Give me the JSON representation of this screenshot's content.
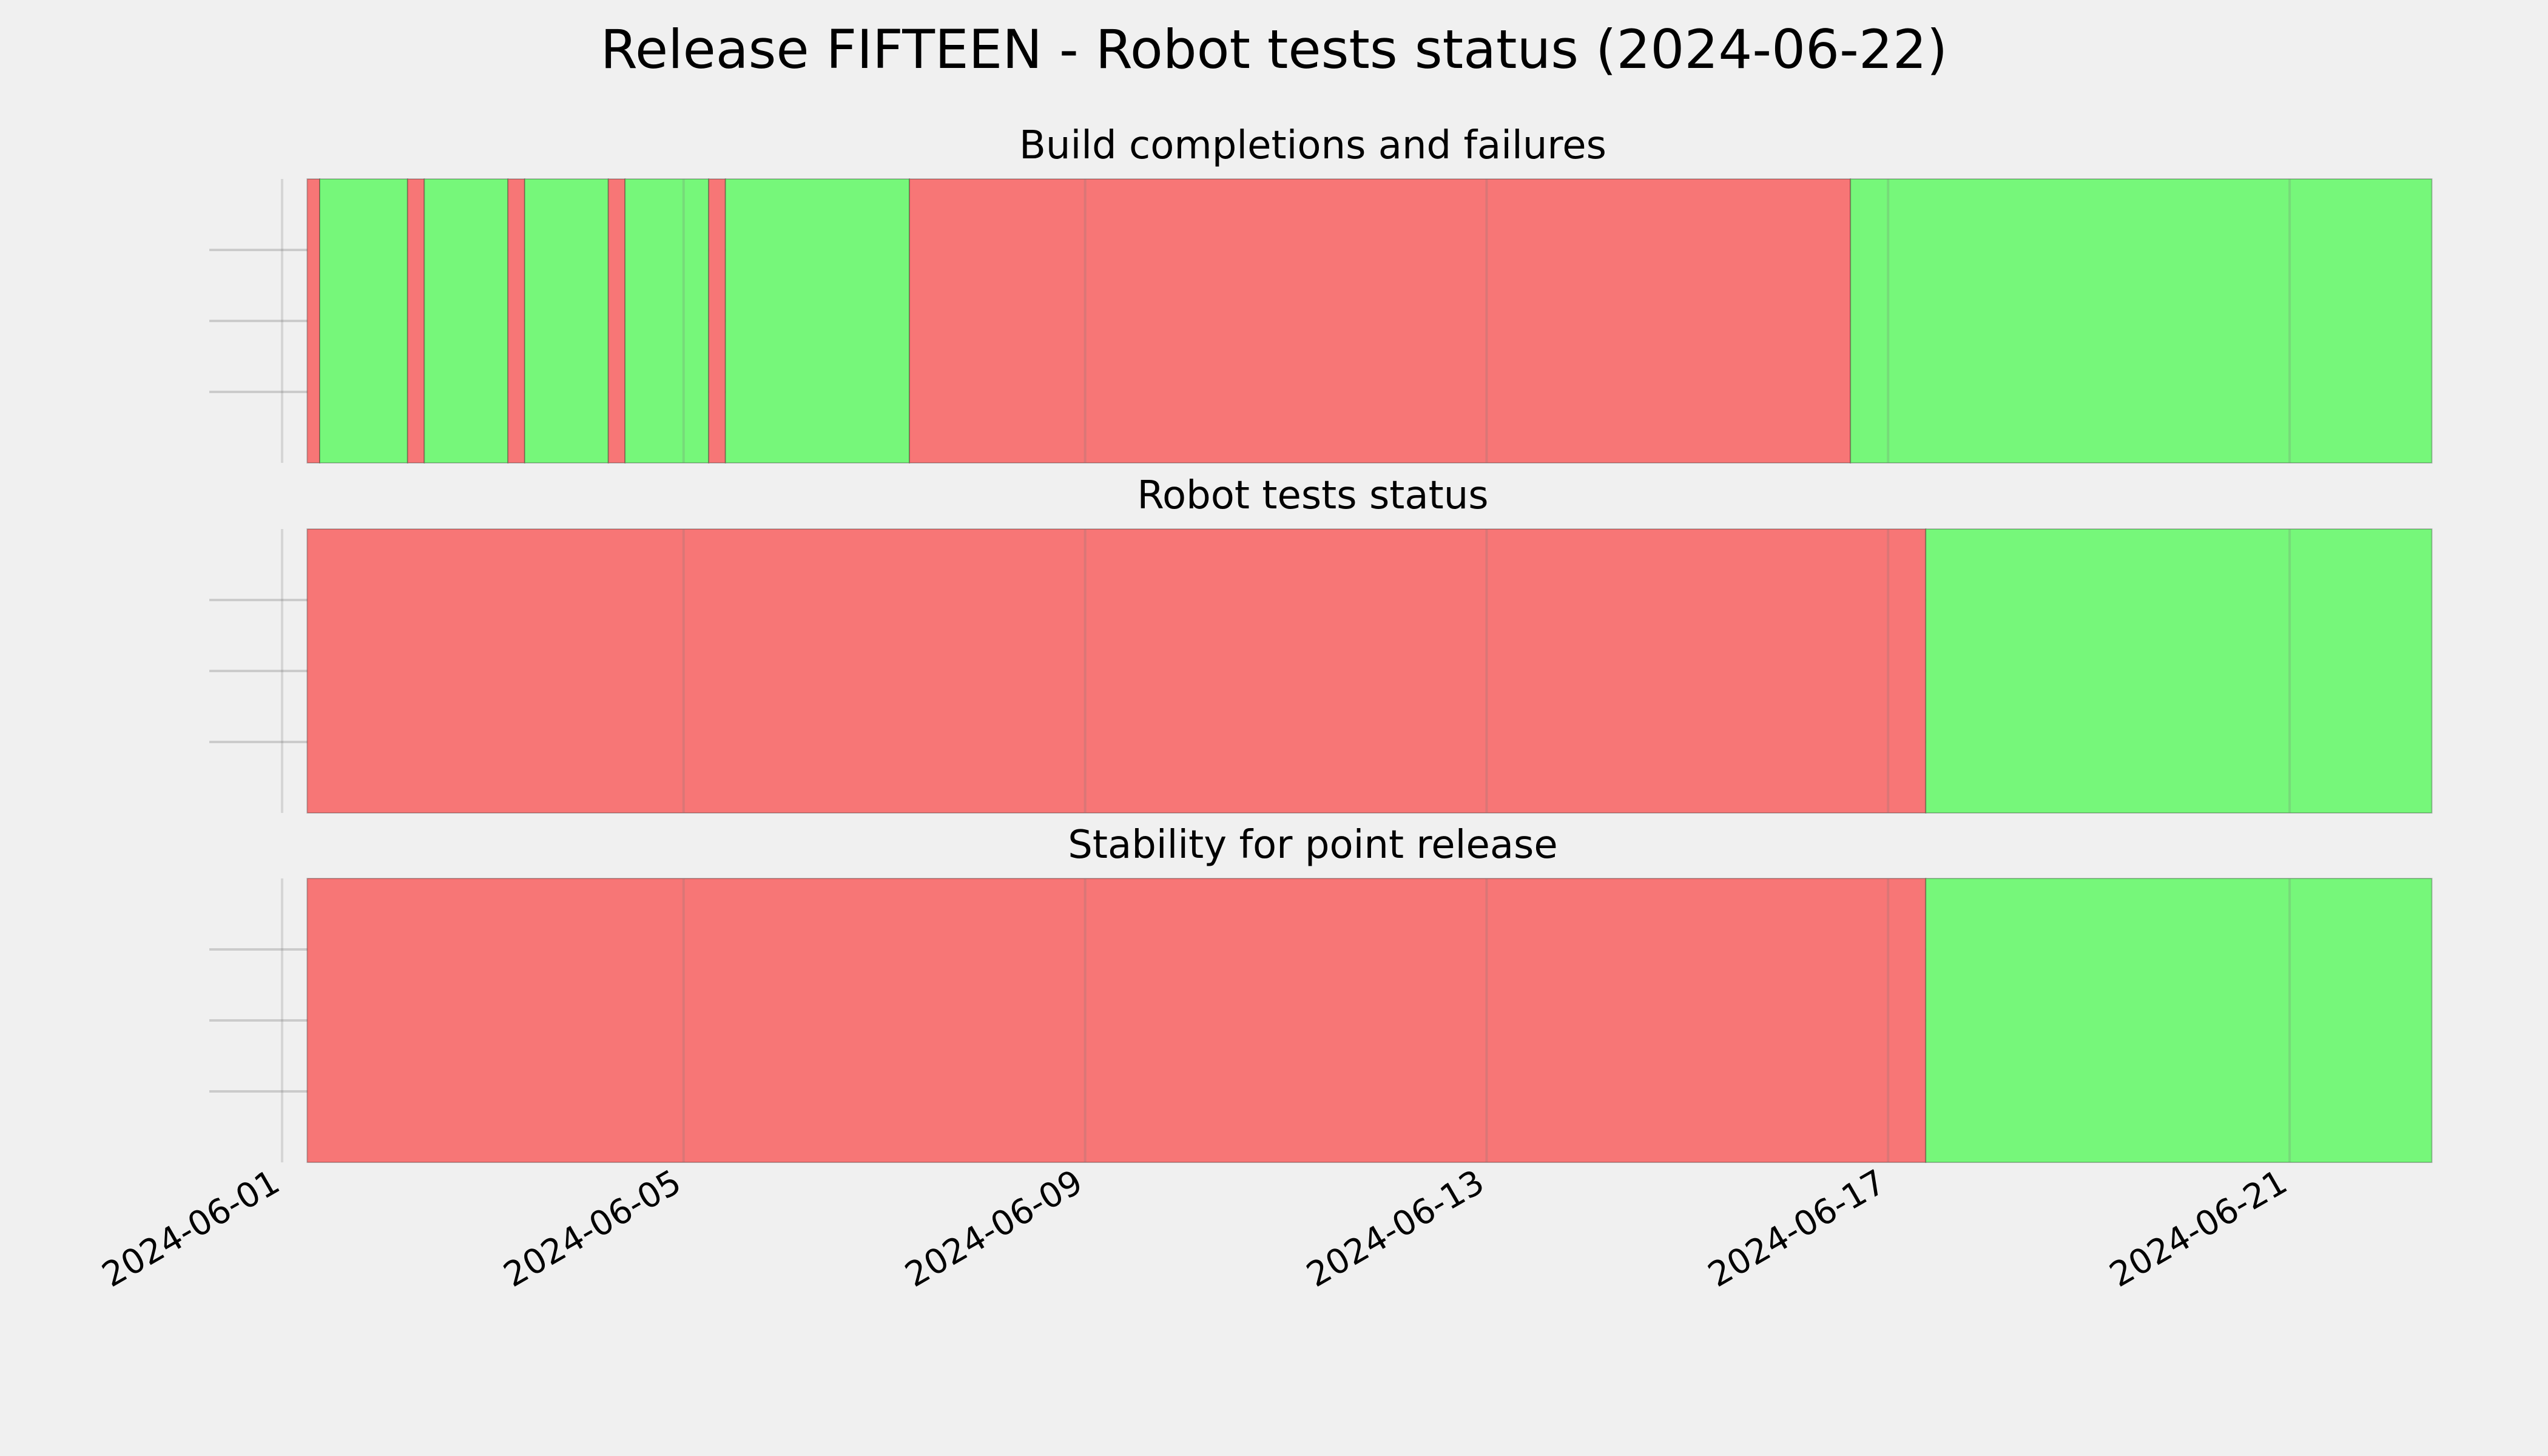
{
  "title": "Release FIFTEEN - Robot tests status (2024-06-22)",
  "colors": {
    "background": "#f0f0f0",
    "pass": "#76f77a",
    "fail": "#f77676",
    "grid": "#cbcbcb"
  },
  "chart_data": {
    "type": "timeline",
    "x_axis": {
      "type": "date",
      "range": [
        "2024-06-01",
        "2024-06-23"
      ],
      "ticks": [
        "2024-06-01",
        "2024-06-05",
        "2024-06-09",
        "2024-06-13",
        "2024-06-17",
        "2024-06-21"
      ],
      "grid": true
    },
    "y_axis": {
      "tick_labels": false,
      "grid": true
    },
    "panels": [
      {
        "title": "Build completions and failures",
        "segments": [
          {
            "start": "2024-06-01 06:00",
            "end": "2024-06-01 09:00",
            "status": "fail"
          },
          {
            "start": "2024-06-01 09:00",
            "end": "2024-06-02 06:00",
            "status": "pass"
          },
          {
            "start": "2024-06-02 06:00",
            "end": "2024-06-02 10:00",
            "status": "fail"
          },
          {
            "start": "2024-06-02 10:00",
            "end": "2024-06-03 06:00",
            "status": "pass"
          },
          {
            "start": "2024-06-03 06:00",
            "end": "2024-06-03 10:00",
            "status": "fail"
          },
          {
            "start": "2024-06-03 10:00",
            "end": "2024-06-04 06:00",
            "status": "pass"
          },
          {
            "start": "2024-06-04 06:00",
            "end": "2024-06-04 10:00",
            "status": "fail"
          },
          {
            "start": "2024-06-04 10:00",
            "end": "2024-06-05 06:00",
            "status": "pass"
          },
          {
            "start": "2024-06-05 06:00",
            "end": "2024-06-05 10:00",
            "status": "fail"
          },
          {
            "start": "2024-06-05 10:00",
            "end": "2024-06-07 06:00",
            "status": "pass"
          },
          {
            "start": "2024-06-07 06:00",
            "end": "2024-06-16 15:00",
            "status": "fail"
          },
          {
            "start": "2024-06-16 15:00",
            "end": "2024-06-22 10:00",
            "status": "pass"
          }
        ]
      },
      {
        "title": "Robot tests status",
        "segments": [
          {
            "start": "2024-06-01 06:00",
            "end": "2024-06-17 09:00",
            "status": "fail"
          },
          {
            "start": "2024-06-17 09:00",
            "end": "2024-06-22 10:00",
            "status": "pass"
          }
        ]
      },
      {
        "title": "Stability for point release",
        "segments": [
          {
            "start": "2024-06-01 06:00",
            "end": "2024-06-17 09:00",
            "status": "fail"
          },
          {
            "start": "2024-06-17 09:00",
            "end": "2024-06-22 10:00",
            "status": "pass"
          }
        ]
      }
    ]
  }
}
